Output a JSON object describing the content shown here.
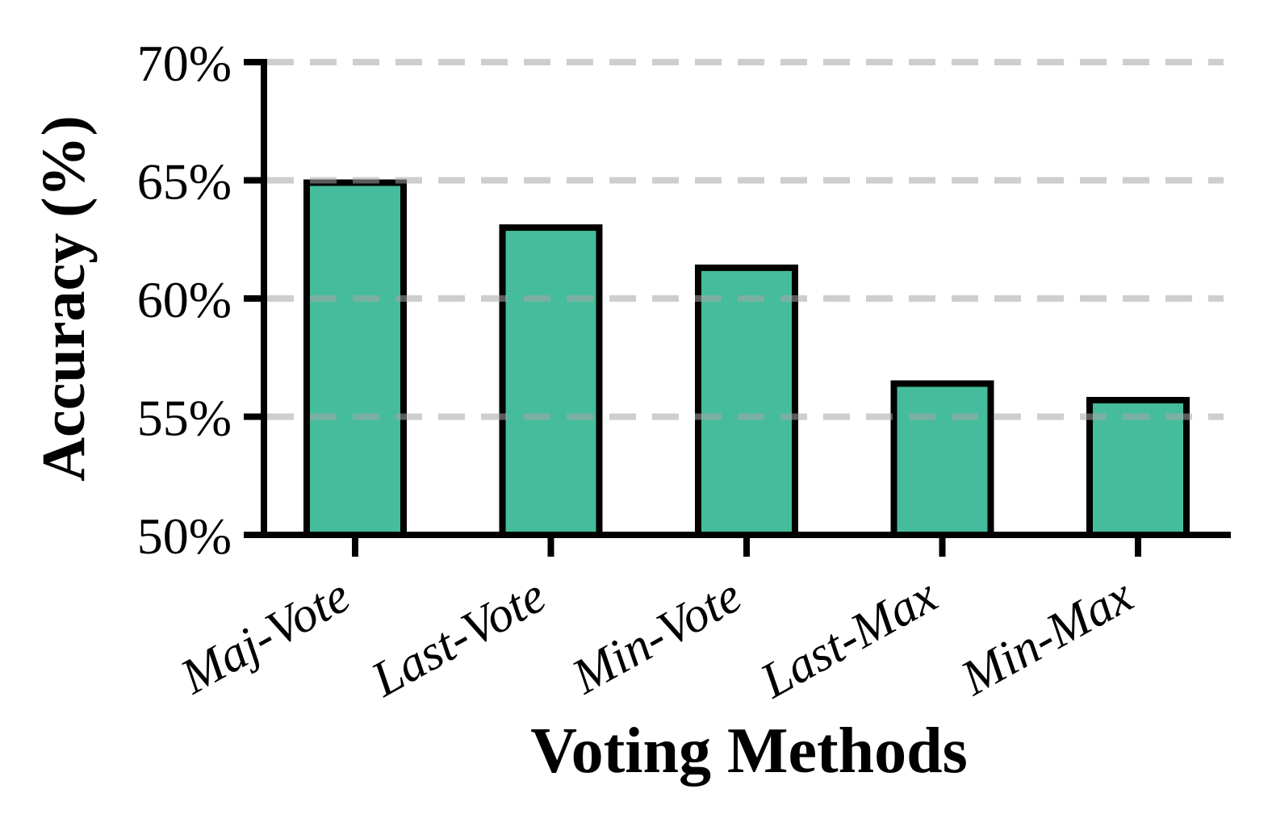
{
  "figure": {
    "background_color": "#ffffff",
    "axis_color": "#000000",
    "gridline_color_rgba": "rgba(165,165,165,0.55)"
  },
  "chart_data": {
    "type": "bar",
    "title": "",
    "xlabel": "Voting Methods",
    "ylabel": "Accuracy (%)",
    "categories": [
      "Maj-Vote",
      "Last-Vote",
      "Min-Vote",
      "Last-Max",
      "Min-Max"
    ],
    "values": [
      64.9,
      63.0,
      61.3,
      56.4,
      55.7
    ],
    "ylim": [
      50,
      70
    ],
    "yticks": [
      50,
      55,
      60,
      65,
      70
    ],
    "ytick_labels": [
      "50%",
      "55%",
      "60%",
      "65%",
      "70%"
    ],
    "grid": "horizontal dashed, drawn above bars",
    "legend": "none",
    "bar_fill_color": "#45BC9B",
    "bar_edge_color": "#000000",
    "xtick_label_rotation_deg": 29
  }
}
